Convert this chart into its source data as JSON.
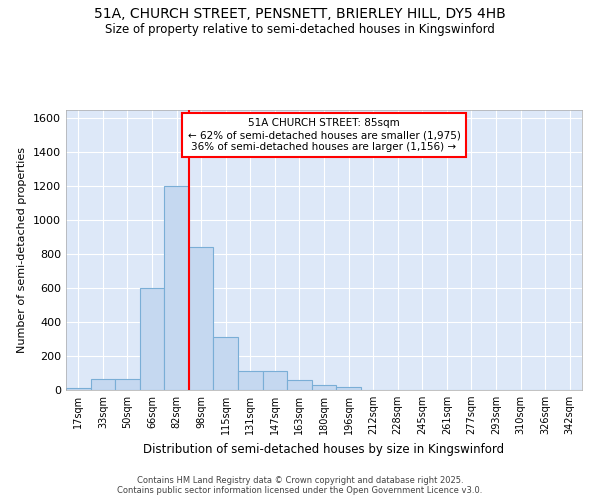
{
  "title1": "51A, CHURCH STREET, PENSNETT, BRIERLEY HILL, DY5 4HB",
  "title2": "Size of property relative to semi-detached houses in Kingswinford",
  "xlabel": "Distribution of semi-detached houses by size in Kingswinford",
  "ylabel": "Number of semi-detached properties",
  "categories": [
    "17sqm",
    "33sqm",
    "50sqm",
    "66sqm",
    "82sqm",
    "98sqm",
    "115sqm",
    "131sqm",
    "147sqm",
    "163sqm",
    "180sqm",
    "196sqm",
    "212sqm",
    "228sqm",
    "245sqm",
    "261sqm",
    "277sqm",
    "293sqm",
    "310sqm",
    "326sqm",
    "342sqm"
  ],
  "values": [
    10,
    65,
    65,
    600,
    1200,
    840,
    315,
    110,
    110,
    60,
    30,
    20,
    0,
    0,
    0,
    0,
    0,
    0,
    0,
    0,
    0
  ],
  "bar_color": "#c5d8f0",
  "bar_edge_color": "#7aaed6",
  "bar_width": 1.0,
  "vline_x": 4.5,
  "vline_color": "red",
  "annotation_title": "51A CHURCH STREET: 85sqm",
  "annotation_line1": "← 62% of semi-detached houses are smaller (1,975)",
  "annotation_line2": "36% of semi-detached houses are larger (1,156) →",
  "annotation_box_color": "white",
  "annotation_box_edge": "red",
  "ylim": [
    0,
    1650
  ],
  "yticks": [
    0,
    200,
    400,
    600,
    800,
    1000,
    1200,
    1400,
    1600
  ],
  "bg_color": "#dde8f8",
  "footer1": "Contains HM Land Registry data © Crown copyright and database right 2025.",
  "footer2": "Contains public sector information licensed under the Open Government Licence v3.0."
}
